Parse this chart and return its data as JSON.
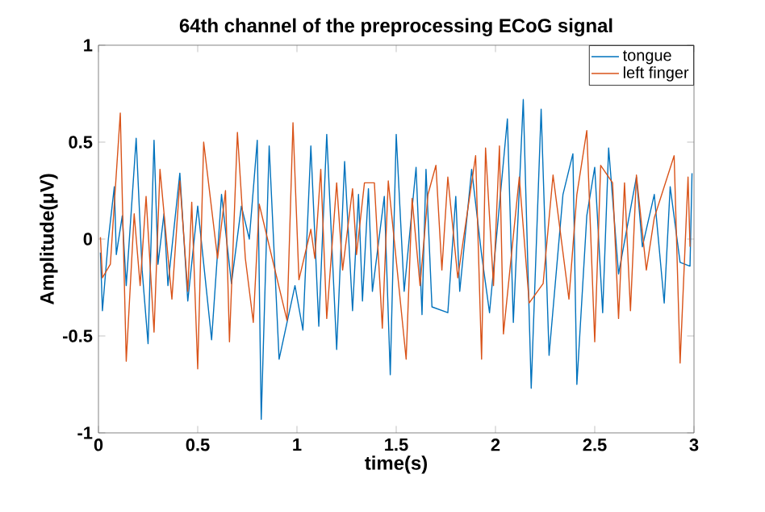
{
  "chart_data": {
    "type": "line",
    "title": "64th channel of the preprocessing ECoG signal",
    "xlabel": "time(s)",
    "ylabel": "Amplitude(μV)",
    "xlim": [
      0,
      3
    ],
    "ylim": [
      -1,
      1
    ],
    "xticks": [
      0,
      0.5,
      1,
      1.5,
      2,
      2.5,
      3
    ],
    "yticks": [
      -1,
      -0.5,
      0,
      0.5,
      1
    ],
    "legend": "top right",
    "grid": false,
    "marker": "none",
    "line_style": "solid",
    "series": [
      {
        "name": "tongue",
        "color": "#0072bd",
        "x": [
          0.01,
          0.02,
          0.05,
          0.08,
          0.09,
          0.12,
          0.14,
          0.19,
          0.22,
          0.25,
          0.28,
          0.3,
          0.33,
          0.35,
          0.41,
          0.45,
          0.5,
          0.57,
          0.62,
          0.67,
          0.72,
          0.76,
          0.8,
          0.82,
          0.86,
          0.91,
          0.99,
          1.03,
          1.07,
          1.11,
          1.15,
          1.2,
          1.24,
          1.28,
          1.31,
          1.33,
          1.36,
          1.38,
          1.44,
          1.47,
          1.5,
          1.54,
          1.6,
          1.63,
          1.65,
          1.68,
          1.76,
          1.8,
          1.82,
          1.88,
          1.93,
          1.97,
          2.06,
          2.09,
          2.14,
          2.18,
          2.23,
          2.27,
          2.34,
          2.39,
          2.41,
          2.46,
          2.5,
          2.54,
          2.57,
          2.62,
          2.71,
          2.74,
          2.8,
          2.85,
          2.88,
          2.93,
          2.98,
          2.99
        ],
        "values": [
          -0.07,
          -0.37,
          0,
          0.27,
          -0.08,
          0.12,
          -0.24,
          0.52,
          -0.16,
          -0.54,
          0.51,
          -0.13,
          0.13,
          -0.24,
          0.34,
          -0.32,
          0.17,
          -0.52,
          0.23,
          -0.23,
          0.17,
          0,
          0.51,
          -0.93,
          0.48,
          -0.62,
          -0.24,
          -0.47,
          0.48,
          -0.45,
          0.54,
          -0.57,
          0.4,
          -0.37,
          0.23,
          -0.32,
          0.26,
          -0.27,
          0.22,
          -0.7,
          0.54,
          -0.27,
          0.37,
          -0.39,
          0.36,
          -0.35,
          -0.38,
          0.22,
          -0.27,
          0.36,
          -0.08,
          -0.38,
          0.62,
          -0.43,
          0.72,
          -0.77,
          0.67,
          -0.6,
          0.23,
          0.44,
          -0.75,
          0.12,
          0.37,
          -0.38,
          0.47,
          -0.18,
          0.32,
          -0.04,
          0.23,
          -0.33,
          0.27,
          -0.12,
          -0.14,
          0.34
        ]
      },
      {
        "name": "left finger",
        "color": "#d95319",
        "x": [
          0.01,
          0.02,
          0.06,
          0.11,
          0.14,
          0.18,
          0.21,
          0.24,
          0.28,
          0.31,
          0.37,
          0.41,
          0.45,
          0.47,
          0.5,
          0.53,
          0.6,
          0.64,
          0.66,
          0.7,
          0.74,
          0.78,
          0.81,
          0.95,
          0.98,
          1.01,
          1.07,
          1.09,
          1.12,
          1.15,
          1.2,
          1.23,
          1.28,
          1.3,
          1.34,
          1.39,
          1.43,
          1.46,
          1.55,
          1.58,
          1.62,
          1.66,
          1.7,
          1.73,
          1.76,
          1.81,
          1.9,
          1.93,
          1.95,
          1.99,
          2.02,
          2.04,
          2.12,
          2.17,
          2.24,
          2.29,
          2.37,
          2.41,
          2.46,
          2.5,
          2.53,
          2.59,
          2.62,
          2.65,
          2.68,
          2.71,
          2.76,
          2.8,
          2.9,
          2.93,
          2.97,
          2.98
        ],
        "values": [
          0.01,
          -0.2,
          -0.13,
          0.65,
          -0.63,
          0.13,
          -0.24,
          0.22,
          -0.48,
          0.36,
          -0.31,
          0.3,
          -0.27,
          0.19,
          -0.67,
          0.5,
          -0.1,
          0.25,
          -0.53,
          0.55,
          -0.1,
          -0.43,
          0.18,
          -0.42,
          0.6,
          -0.21,
          0.05,
          -0.1,
          0.36,
          -0.41,
          0.29,
          -0.16,
          0.26,
          -0.08,
          0.29,
          0.29,
          -0.46,
          0.3,
          -0.62,
          0.21,
          -0.24,
          0.23,
          0.38,
          -0.16,
          0.32,
          -0.2,
          0.43,
          -0.62,
          0.47,
          -0.24,
          0.48,
          -0.49,
          0.32,
          -0.33,
          -0.23,
          0.33,
          -0.31,
          0.23,
          0.56,
          -0.53,
          0.38,
          0.29,
          -0.41,
          0.29,
          -0.37,
          0.33,
          -0.16,
          0.11,
          0.43,
          -0.64,
          0.32,
          -0.04
        ]
      }
    ]
  }
}
